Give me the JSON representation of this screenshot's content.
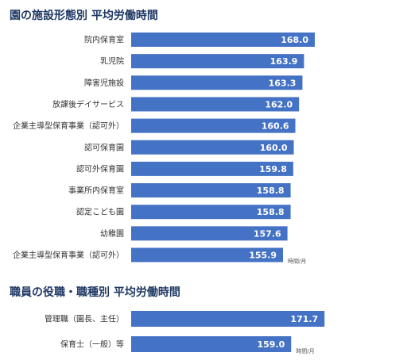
{
  "sections": [
    {
      "title": "園の施設形態別 平均労働時間"
    },
    {
      "title": "職員の役職・職種別 平均労働時間"
    }
  ],
  "chart_data": [
    {
      "type": "bar",
      "orientation": "horizontal",
      "title": "園の施設形態別 平均労働時間",
      "categories": [
        "院内保育室",
        "乳児院",
        "障害児施設",
        "放課後デイサービス",
        "企業主導型保育事業（認可外）",
        "認可保育園",
        "認可外保育園",
        "事業所内保育室",
        "認定こども園",
        "幼稚園",
        "企業主導型保育事業（認可外）"
      ],
      "values": [
        168.0,
        163.9,
        163.3,
        162.0,
        160.6,
        160.0,
        159.8,
        158.8,
        158.8,
        157.6,
        155.9
      ],
      "value_labels": [
        "168.0",
        "163.9",
        "163.3",
        "162.0",
        "160.6",
        "160.0",
        "159.8",
        "158.8",
        "158.8",
        "157.6",
        "155.9"
      ],
      "unit": "時間/月",
      "bar_color": "#4472c4"
    },
    {
      "type": "bar",
      "orientation": "horizontal",
      "title": "職員の役職・職種別 平均労働時間",
      "categories": [
        "管理職（園長、主任）",
        "保育士（一般）等"
      ],
      "values": [
        171.7,
        159.0
      ],
      "value_labels": [
        "171.7",
        "159.0"
      ],
      "unit": "時間/月",
      "bar_color": "#4472c4"
    }
  ]
}
